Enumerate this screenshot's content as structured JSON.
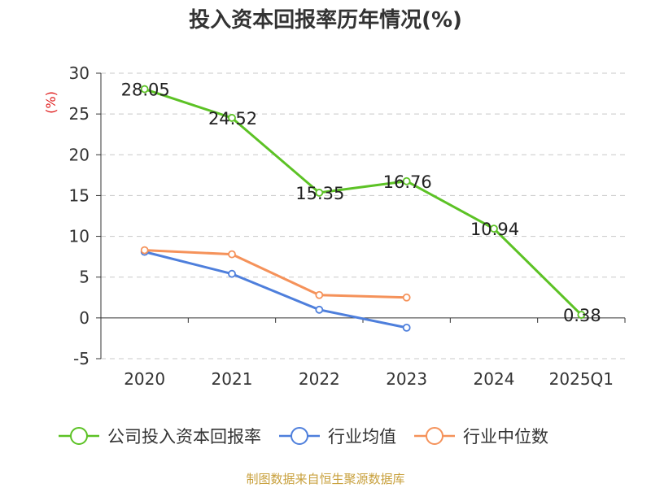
{
  "chart_data": {
    "type": "line",
    "title": "投入资本回报率历年情况(%)",
    "ylabel": "(%)",
    "xlabel": "",
    "categories": [
      "2020",
      "2021",
      "2022",
      "2023",
      "2024",
      "2025Q1"
    ],
    "ylim": [
      -5,
      30
    ],
    "yticks": [
      -5,
      0,
      5,
      10,
      15,
      20,
      25,
      30
    ],
    "grid": true,
    "legend_position": "bottom",
    "series": [
      {
        "name": "公司投入资本回报率",
        "color": "#5cc225",
        "values": [
          28.05,
          24.52,
          15.35,
          16.76,
          10.94,
          0.38
        ],
        "labels": [
          "28.05",
          "24.52",
          "15.35",
          "16.76",
          "10.94",
          "0.38"
        ]
      },
      {
        "name": "行业均值",
        "color": "#4e7fdc",
        "values": [
          8.1,
          5.4,
          1.0,
          -1.2,
          null,
          null
        ]
      },
      {
        "name": "行业中位数",
        "color": "#f5925a",
        "values": [
          8.3,
          7.8,
          2.8,
          2.5,
          null,
          null
        ]
      }
    ],
    "source": "制图数据来自恒生聚源数据库"
  }
}
